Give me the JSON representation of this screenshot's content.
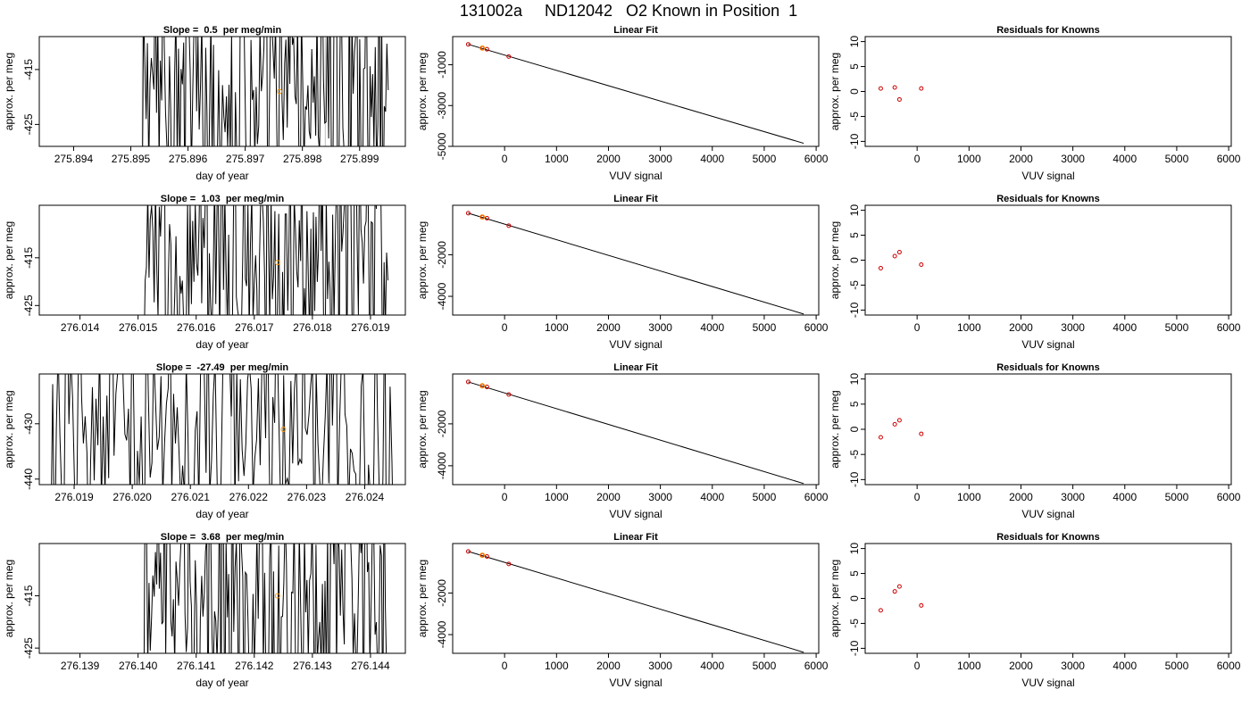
{
  "page_title": "131002a     ND12042   O2 Known in Position  1",
  "colors": {
    "trace": "#000000",
    "marker_orange": "#ff9900",
    "marker_red": "#cc0000",
    "vline": "#bfbfbf"
  },
  "chart_data": [
    {
      "type": "line",
      "title": "Slope =  0.5  per meg/min",
      "xlabel": "day of year",
      "ylabel": "approx. per meg",
      "xlim": [
        275.8934,
        275.8998
      ],
      "ylim": [
        -429,
        -409
      ],
      "xticks": [
        275.894,
        275.895,
        275.896,
        275.897,
        275.898,
        275.899
      ],
      "xtick_labels": [
        "275.894",
        "275.895",
        "275.896",
        "275.897",
        "275.898",
        "275.899"
      ],
      "yticks": [
        -415,
        -425
      ],
      "ytick_labels": [
        "-415",
        "-425"
      ],
      "trace_x_range": [
        275.8952,
        275.8995
      ],
      "vlines": [
        275.8952,
        275.8984
      ],
      "marker": {
        "x": 275.8976,
        "y": -419
      }
    },
    {
      "type": "scatter",
      "title": "Linear Fit",
      "xlabel": "VUV signal",
      "ylabel": "approx. per meg",
      "xlim": [
        -1000,
        6050
      ],
      "ylim": [
        -5000,
        380
      ],
      "xticks": [
        0,
        1000,
        2000,
        3000,
        4000,
        5000,
        6000
      ],
      "xtick_labels": [
        "0",
        "1000",
        "2000",
        "3000",
        "4000",
        "5000",
        "6000"
      ],
      "yticks": [
        -1000,
        -3000,
        -5000
      ],
      "ytick_labels": [
        "-1000",
        "-3000",
        "-5000"
      ],
      "points": [
        {
          "x": -700,
          "y": 0
        },
        {
          "x": -430,
          "y": -185
        },
        {
          "x": -340,
          "y": -240
        },
        {
          "x": 80,
          "y": -600
        }
      ],
      "fit_line": [
        {
          "x": -700,
          "y": 0
        },
        {
          "x": 5760,
          "y": -4850
        }
      ],
      "marker": {
        "x": -430,
        "y": -185
      }
    },
    {
      "type": "scatter",
      "title": "Residuals for Knowns",
      "xlabel": "VUV signal",
      "ylabel": "approx. per meg",
      "xlim": [
        -1000,
        6050
      ],
      "ylim": [
        -11,
        11
      ],
      "xticks": [
        0,
        1000,
        2000,
        3000,
        4000,
        5000,
        6000
      ],
      "xtick_labels": [
        "0",
        "1000",
        "2000",
        "3000",
        "4000",
        "5000",
        "6000"
      ],
      "yticks": [
        10,
        5,
        0,
        -5,
        -10
      ],
      "ytick_labels": [
        "10",
        "5",
        "0",
        "-5",
        "-10"
      ],
      "points": [
        {
          "x": -700,
          "y": 0.6
        },
        {
          "x": -430,
          "y": 0.8
        },
        {
          "x": -340,
          "y": -1.6
        },
        {
          "x": 80,
          "y": 0.6
        }
      ]
    },
    {
      "type": "line",
      "title": "Slope =  1.03  per meg/min",
      "xlabel": "day of year",
      "ylabel": "approx. per meg",
      "xlim": [
        276.0133,
        276.0196
      ],
      "ylim": [
        -427,
        -404
      ],
      "xticks": [
        276.014,
        276.015,
        276.016,
        276.017,
        276.018,
        276.019
      ],
      "xtick_labels": [
        "276.014",
        "276.015",
        "276.016",
        "276.017",
        "276.018",
        "276.019"
      ],
      "yticks": [
        -415,
        -425
      ],
      "ytick_labels": [
        "-415",
        "-425"
      ],
      "trace_x_range": [
        276.0151,
        276.0193
      ],
      "vlines": [
        276.0165
      ],
      "marker": {
        "x": 276.0174,
        "y": -416
      }
    },
    {
      "type": "scatter",
      "title": "Linear Fit",
      "xlabel": "VUV signal",
      "ylabel": "approx. per meg",
      "xlim": [
        -1000,
        6050
      ],
      "ylim": [
        -4900,
        380
      ],
      "xticks": [
        0,
        1000,
        2000,
        3000,
        4000,
        5000,
        6000
      ],
      "xtick_labels": [
        "0",
        "1000",
        "2000",
        "3000",
        "4000",
        "5000",
        "6000"
      ],
      "yticks": [
        -2000,
        -4000
      ],
      "ytick_labels": [
        "-2000",
        "-4000"
      ],
      "points": [
        {
          "x": -700,
          "y": 0
        },
        {
          "x": -430,
          "y": -185
        },
        {
          "x": -340,
          "y": -240
        },
        {
          "x": 80,
          "y": -600
        }
      ],
      "fit_line": [
        {
          "x": -700,
          "y": 0
        },
        {
          "x": 5760,
          "y": -4850
        }
      ],
      "marker": {
        "x": -430,
        "y": -185
      }
    },
    {
      "type": "scatter",
      "title": "Residuals for Knowns",
      "xlabel": "VUV signal",
      "ylabel": "approx. per meg",
      "xlim": [
        -1000,
        6050
      ],
      "ylim": [
        -11,
        11
      ],
      "xticks": [
        0,
        1000,
        2000,
        3000,
        4000,
        5000,
        6000
      ],
      "xtick_labels": [
        "0",
        "1000",
        "2000",
        "3000",
        "4000",
        "5000",
        "6000"
      ],
      "yticks": [
        10,
        5,
        0,
        -5,
        -10
      ],
      "ytick_labels": [
        "10",
        "5",
        "0",
        "-5",
        "-10"
      ],
      "points": [
        {
          "x": -700,
          "y": -1.6
        },
        {
          "x": -430,
          "y": 0.8
        },
        {
          "x": -340,
          "y": 1.6
        },
        {
          "x": 80,
          "y": -0.9
        }
      ]
    },
    {
      "type": "line",
      "title": "Slope =  -27.49  per meg/min",
      "xlabel": "day of year",
      "ylabel": "approx. per meg",
      "xlim": [
        276.0184,
        276.0247
      ],
      "ylim": [
        -441,
        -421
      ],
      "xticks": [
        276.019,
        276.02,
        276.021,
        276.022,
        276.023,
        276.024
      ],
      "xtick_labels": [
        "276.019",
        "276.020",
        "276.021",
        "276.022",
        "276.023",
        "276.024"
      ],
      "yticks": [
        -430,
        -440
      ],
      "ytick_labels": [
        "-430",
        "-440"
      ],
      "trace_x_range": [
        276.0186,
        276.0245
      ],
      "vlines": [
        276.0217,
        276.0234
      ],
      "marker": {
        "x": 276.0226,
        "y": -431
      }
    },
    {
      "type": "scatter",
      "title": "Linear Fit",
      "xlabel": "VUV signal",
      "ylabel": "approx. per meg",
      "xlim": [
        -1000,
        6050
      ],
      "ylim": [
        -4900,
        380
      ],
      "xticks": [
        0,
        1000,
        2000,
        3000,
        4000,
        5000,
        6000
      ],
      "xtick_labels": [
        "0",
        "1000",
        "2000",
        "3000",
        "4000",
        "5000",
        "6000"
      ],
      "yticks": [
        -2000,
        -4000
      ],
      "ytick_labels": [
        "-2000",
        "-4000"
      ],
      "points": [
        {
          "x": -700,
          "y": 0
        },
        {
          "x": -430,
          "y": -185
        },
        {
          "x": -340,
          "y": -240
        },
        {
          "x": 80,
          "y": -600
        }
      ],
      "fit_line": [
        {
          "x": -700,
          "y": 0
        },
        {
          "x": 5760,
          "y": -4850
        }
      ],
      "marker": {
        "x": -430,
        "y": -185
      }
    },
    {
      "type": "scatter",
      "title": "Residuals for Knowns",
      "xlabel": "VUV signal",
      "ylabel": "approx. per meg",
      "xlim": [
        -1000,
        6050
      ],
      "ylim": [
        -11,
        11
      ],
      "xticks": [
        0,
        1000,
        2000,
        3000,
        4000,
        5000,
        6000
      ],
      "xtick_labels": [
        "0",
        "1000",
        "2000",
        "3000",
        "4000",
        "5000",
        "6000"
      ],
      "yticks": [
        10,
        5,
        0,
        -5,
        -10
      ],
      "ytick_labels": [
        "10",
        "5",
        "0",
        "-5",
        "-10"
      ],
      "points": [
        {
          "x": -700,
          "y": -1.6
        },
        {
          "x": -430,
          "y": 1.0
        },
        {
          "x": -340,
          "y": 1.8
        },
        {
          "x": 80,
          "y": -0.9
        }
      ]
    },
    {
      "type": "line",
      "title": "Slope =  3.68  per meg/min",
      "xlabel": "day of year",
      "ylabel": "approx. per meg",
      "xlim": [
        276.1383,
        276.1446
      ],
      "ylim": [
        -426,
        -405
      ],
      "xticks": [
        276.139,
        276.14,
        276.141,
        276.142,
        276.143,
        276.144
      ],
      "xtick_labels": [
        "276.139",
        "276.140",
        "276.141",
        "276.142",
        "276.143",
        "276.144"
      ],
      "yticks": [
        -415,
        -425
      ],
      "ytick_labels": [
        "-415",
        "-425"
      ],
      "trace_x_range": [
        276.1401,
        276.1443
      ],
      "vlines": [
        276.1416,
        276.1433
      ],
      "marker": {
        "x": 276.1424,
        "y": -415
      }
    },
    {
      "type": "scatter",
      "title": "Linear Fit",
      "xlabel": "VUV signal",
      "ylabel": "approx. per meg",
      "xlim": [
        -1000,
        6050
      ],
      "ylim": [
        -4900,
        380
      ],
      "xticks": [
        0,
        1000,
        2000,
        3000,
        4000,
        5000,
        6000
      ],
      "xtick_labels": [
        "0",
        "1000",
        "2000",
        "3000",
        "4000",
        "5000",
        "6000"
      ],
      "yticks": [
        -2000,
        -4000
      ],
      "ytick_labels": [
        "-2000",
        "-4000"
      ],
      "points": [
        {
          "x": -700,
          "y": 0
        },
        {
          "x": -430,
          "y": -185
        },
        {
          "x": -340,
          "y": -240
        },
        {
          "x": 80,
          "y": -600
        }
      ],
      "fit_line": [
        {
          "x": -700,
          "y": 0
        },
        {
          "x": 5760,
          "y": -4850
        }
      ],
      "marker": {
        "x": -430,
        "y": -185
      }
    },
    {
      "type": "scatter",
      "title": "Residuals for Knowns",
      "xlabel": "VUV signal",
      "ylabel": "approx. per meg",
      "xlim": [
        -1000,
        6050
      ],
      "ylim": [
        -11,
        11
      ],
      "xticks": [
        0,
        1000,
        2000,
        3000,
        4000,
        5000,
        6000
      ],
      "xtick_labels": [
        "0",
        "1000",
        "2000",
        "3000",
        "4000",
        "5000",
        "6000"
      ],
      "yticks": [
        10,
        5,
        0,
        -5,
        -10
      ],
      "ytick_labels": [
        "10",
        "5",
        "0",
        "-5",
        "-10"
      ],
      "points": [
        {
          "x": -700,
          "y": -2.4
        },
        {
          "x": -430,
          "y": 1.4
        },
        {
          "x": -340,
          "y": 2.4
        },
        {
          "x": 80,
          "y": -1.4
        }
      ]
    }
  ]
}
